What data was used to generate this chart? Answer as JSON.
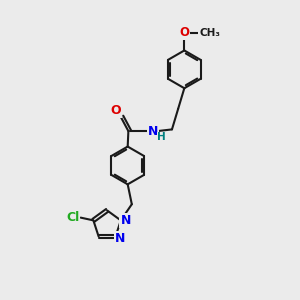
{
  "background_color": "#ebebeb",
  "bond_color": "#1a1a1a",
  "bond_width": 1.5,
  "atom_colors": {
    "O": "#dd0000",
    "N": "#0000ee",
    "Cl": "#22aa22",
    "H": "#008080",
    "C": "#1a1a1a"
  },
  "figsize": [
    3.0,
    3.0
  ],
  "dpi": 100
}
